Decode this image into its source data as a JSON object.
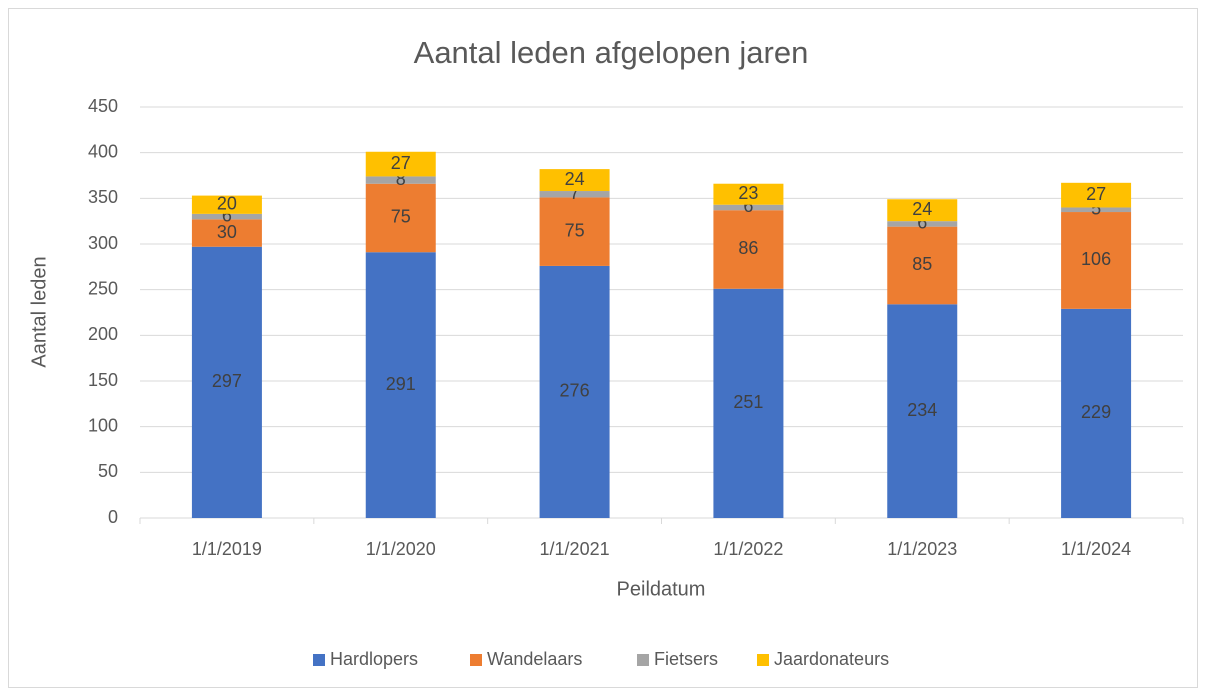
{
  "chart_data": {
    "type": "stacked_bar",
    "title": "Aantal leden afgelopen jaren",
    "x_label": "Peildatum",
    "y_label": "Aantal leden",
    "categories": [
      "1/1/2019",
      "1/1/2020",
      "1/1/2021",
      "1/1/2022",
      "1/1/2023",
      "1/1/2024"
    ],
    "series": [
      {
        "name": "Hardlopers",
        "color": "#4472c4",
        "values": [
          297,
          291,
          276,
          251,
          234,
          229
        ]
      },
      {
        "name": "Wandelaars",
        "color": "#ed7d31",
        "values": [
          30,
          75,
          75,
          86,
          85,
          106
        ]
      },
      {
        "name": "Fietsers",
        "color": "#a5a5a5",
        "values": [
          6,
          8,
          7,
          6,
          6,
          5
        ]
      },
      {
        "name": "Jaardonateurs",
        "color": "#ffc000",
        "values": [
          20,
          27,
          24,
          23,
          24,
          27
        ]
      }
    ],
    "ylim": [
      0,
      450
    ],
    "yticks": [
      0,
      50,
      100,
      150,
      200,
      250,
      300,
      350,
      400,
      450
    ],
    "grid": true,
    "legend": "bottom"
  }
}
